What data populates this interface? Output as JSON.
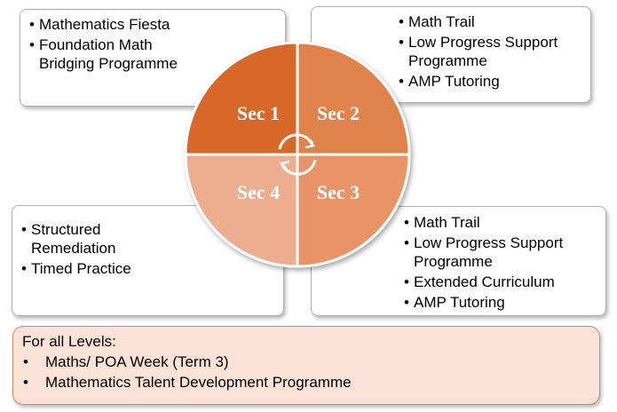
{
  "quadrants": {
    "sec1": {
      "label": "Sec 1",
      "color": "#d8672a"
    },
    "sec2": {
      "label": "Sec 2",
      "color": "#e0824c"
    },
    "sec3": {
      "label": "Sec 3",
      "color": "#e89468"
    },
    "sec4": {
      "label": "Sec 4",
      "color": "#ecae8e"
    }
  },
  "boxes": {
    "sec1": [
      "Mathematics Fiesta",
      "Foundation Math Bridging Programme"
    ],
    "sec2": [
      "Math Trail",
      "Low Progress Support Programme",
      "AMP Tutoring"
    ],
    "sec3": [
      "Math Trail",
      "Low Progress Support Programme",
      "Extended Curriculum",
      "AMP Tutoring"
    ],
    "sec4": [
      "Structured Remediation",
      "Timed Practice"
    ]
  },
  "all_levels": {
    "title": "For all Levels:",
    "items": [
      "Maths/ POA Week (Term 3)",
      "Mathematics Talent Development Programme"
    ]
  },
  "cycle_icon": "circular-arrows-icon"
}
